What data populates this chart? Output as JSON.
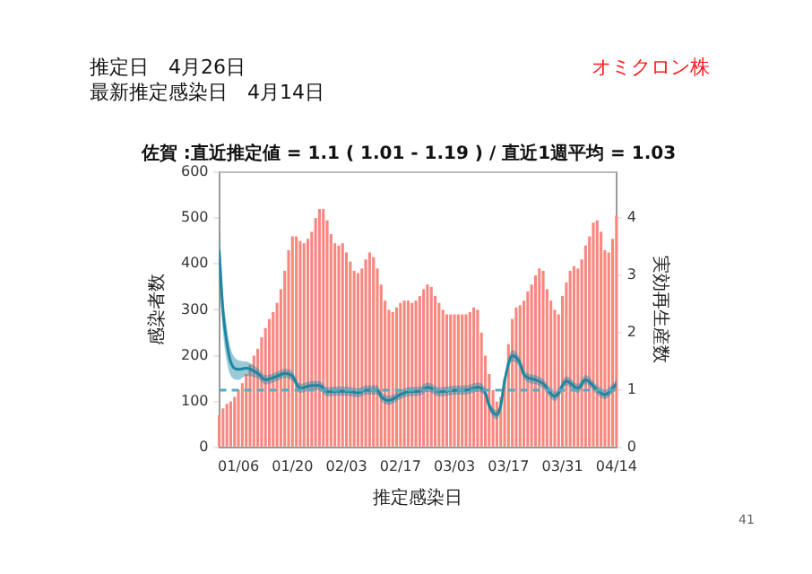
{
  "chart_data": {
    "type": "bar",
    "title": "佐賀 :直近推定値 = 1.1 ( 1.01 - 1.19 ) / 直近1週平均 = 1.03",
    "xlabel": "推定感染日",
    "ylabel": "感染者数",
    "y2label": "実効再生産数",
    "annotations": [
      "推定日　4月26日",
      "最新推定感染日　4月14日",
      "オミクロン株",
      "41"
    ],
    "x": [
      "--01-01",
      "--01-02",
      "--01-03",
      "--01-04",
      "--01-05",
      "--01-06",
      "--01-07",
      "--01-08",
      "--01-09",
      "--01-10",
      "--01-11",
      "--01-12",
      "--01-13",
      "--01-14",
      "--01-15",
      "--01-16",
      "--01-17",
      "--01-18",
      "--01-19",
      "--01-20",
      "--01-21",
      "--01-22",
      "--01-23",
      "--01-24",
      "--01-25",
      "--01-26",
      "--01-27",
      "--01-28",
      "--01-29",
      "--01-30",
      "--01-31",
      "--02-01",
      "--02-02",
      "--02-03",
      "--02-04",
      "--02-05",
      "--02-06",
      "--02-07",
      "--02-08",
      "--02-09",
      "--02-10",
      "--02-11",
      "--02-12",
      "--02-13",
      "--02-14",
      "--02-15",
      "--02-16",
      "--02-17",
      "--02-18",
      "--02-19",
      "--02-20",
      "--02-21",
      "--02-22",
      "--02-23",
      "--02-24",
      "--02-25",
      "--02-26",
      "--02-27",
      "--02-28",
      "--03-01",
      "--03-02",
      "--03-03",
      "--03-04",
      "--03-05",
      "--03-06",
      "--03-07",
      "--03-08",
      "--03-09",
      "--03-10",
      "--03-11",
      "--03-12",
      "--03-13",
      "--03-14",
      "--03-15",
      "--03-16",
      "--03-17",
      "--03-18",
      "--03-19",
      "--03-20",
      "--03-21",
      "--03-22",
      "--03-23",
      "--03-24",
      "--03-25",
      "--03-26",
      "--03-27",
      "--03-28",
      "--03-29",
      "--03-30",
      "--03-31",
      "--04-01",
      "--04-02",
      "--04-03",
      "--04-04",
      "--04-05",
      "--04-06",
      "--04-07",
      "--04-08",
      "--04-09",
      "--04-10",
      "--04-11",
      "--04-12",
      "--04-13",
      "--04-14"
    ],
    "series": [
      {
        "color": "#f8877f",
        "values": [
          70,
          85,
          95,
          100,
          110,
          125,
          140,
          160,
          180,
          200,
          215,
          240,
          260,
          280,
          295,
          315,
          345,
          385,
          430,
          460,
          460,
          450,
          445,
          455,
          470,
          500,
          520,
          520,
          495,
          465,
          445,
          440,
          445,
          425,
          405,
          385,
          380,
          390,
          410,
          425,
          415,
          390,
          355,
          320,
          300,
          295,
          305,
          315,
          320,
          320,
          315,
          320,
          330,
          345,
          355,
          350,
          330,
          315,
          300,
          290,
          290,
          290,
          290,
          290,
          290,
          295,
          305,
          300,
          250,
          200,
          160,
          125,
          100,
          110,
          150,
          225,
          280,
          305,
          310,
          320,
          340,
          355,
          375,
          390,
          385,
          345,
          320,
          300,
          290,
          330,
          360,
          385,
          395,
          390,
          410,
          440,
          460,
          490,
          495,
          470,
          430,
          425,
          455,
          505
        ]
      },
      {
        "type": "line",
        "axis": "y2",
        "color": "#1c87a3",
        "x": [
          "--01-01",
          "--01-02",
          "--01-03",
          "--01-04",
          "--01-06",
          "--01-08",
          "--01-11",
          "--01-13",
          "--01-16",
          "--01-18",
          "--01-20",
          "--01-22",
          "--01-25",
          "--01-27",
          "--01-29",
          "--02-01",
          "--02-03",
          "--02-06",
          "--02-08",
          "--02-11",
          "--02-12",
          "--02-14",
          "--02-17",
          "--02-19",
          "--02-22",
          "--02-24",
          "--02-27",
          "--03-01",
          "--03-04",
          "--03-06",
          "--03-09",
          "--03-11",
          "--03-12",
          "--03-14",
          "--03-15",
          "--03-16",
          "--03-18",
          "--03-20",
          "--03-21",
          "--03-24",
          "--03-26",
          "--03-29",
          "--03-30",
          "--04-01",
          "--04-04",
          "--04-06",
          "--04-09",
          "--04-11",
          "--04-13",
          "--04-14"
        ],
        "values": [
          3.44,
          2.36,
          1.82,
          1.49,
          1.36,
          1.38,
          1.29,
          1.18,
          1.24,
          1.29,
          1.24,
          1.03,
          1.08,
          1.08,
          0.97,
          0.98,
          0.98,
          0.95,
          1.0,
          1.0,
          0.89,
          0.82,
          0.92,
          0.97,
          0.98,
          1.05,
          0.97,
          0.98,
          1.0,
          1.0,
          1.05,
          0.95,
          0.73,
          0.57,
          0.73,
          1.16,
          1.6,
          1.47,
          1.27,
          1.18,
          1.11,
          0.89,
          0.95,
          1.16,
          1.03,
          1.18,
          1.0,
          0.92,
          1.03,
          1.11
        ],
        "lower": [
          3.0,
          2.0,
          1.5,
          1.25,
          1.18,
          1.25,
          1.2,
          1.1,
          1.16,
          1.21,
          1.16,
          0.95,
          1.0,
          1.0,
          0.89,
          0.9,
          0.9,
          0.87,
          0.92,
          0.92,
          0.81,
          0.74,
          0.84,
          0.89,
          0.9,
          0.97,
          0.89,
          0.9,
          0.92,
          0.92,
          0.97,
          0.87,
          0.65,
          0.49,
          0.65,
          1.08,
          1.5,
          1.38,
          1.19,
          1.1,
          1.03,
          0.81,
          0.87,
          1.08,
          0.95,
          1.1,
          0.92,
          0.84,
          0.95,
          1.01
        ],
        "upper": [
          3.9,
          2.7,
          2.1,
          1.72,
          1.52,
          1.5,
          1.38,
          1.26,
          1.32,
          1.37,
          1.32,
          1.11,
          1.16,
          1.16,
          1.05,
          1.06,
          1.06,
          1.03,
          1.08,
          1.08,
          0.97,
          0.9,
          1.0,
          1.05,
          1.06,
          1.13,
          1.05,
          1.06,
          1.08,
          1.08,
          1.13,
          1.03,
          0.81,
          0.65,
          0.81,
          1.24,
          1.7,
          1.56,
          1.35,
          1.26,
          1.19,
          0.97,
          1.03,
          1.24,
          1.11,
          1.26,
          1.08,
          1.0,
          1.11,
          1.19
        ]
      }
    ],
    "ref_lines": [
      {
        "axis": "y2",
        "value": 1,
        "color": "#5aa9c0",
        "line_style": "dashed"
      }
    ],
    "xlim": [
      "--01-01",
      "--04-14"
    ],
    "xticks": [
      {
        "value": "--01-06",
        "label": "01/06"
      },
      {
        "value": "--01-20",
        "label": "01/20"
      },
      {
        "value": "--02-03",
        "label": "02/03"
      },
      {
        "value": "--02-17",
        "label": "02/17"
      },
      {
        "value": "--03-03",
        "label": "03/03"
      },
      {
        "value": "--03-17",
        "label": "03/17"
      },
      {
        "value": "--03-31",
        "label": "03/31"
      },
      {
        "value": "--04-14",
        "label": "04/14"
      }
    ],
    "ylim": [
      0,
      600
    ],
    "yticks": [
      0,
      100,
      200,
      300,
      400,
      500,
      600
    ],
    "y2lim": [
      0,
      4.8
    ],
    "y2ticks": [
      0,
      1,
      2,
      3,
      4
    ],
    "grid": false,
    "legend": false
  }
}
